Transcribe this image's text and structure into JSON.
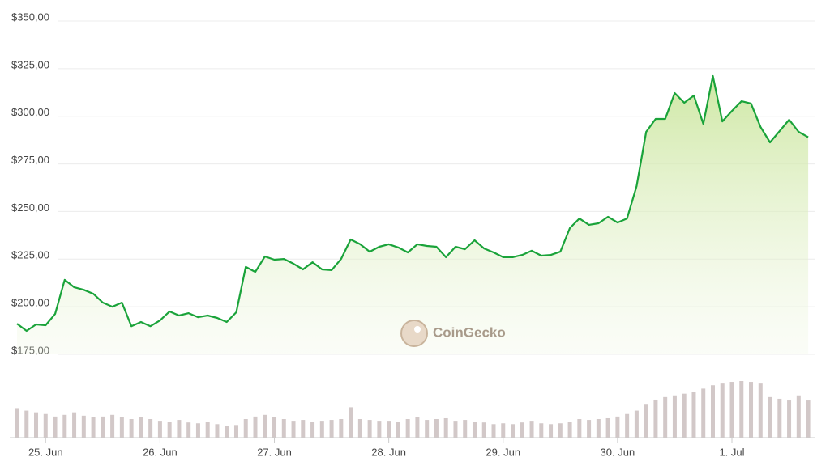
{
  "chart_data": {
    "type": "line",
    "watermark": "CoinGecko",
    "categories": [
      null,
      null,
      null,
      "25. Jun",
      null,
      null,
      null,
      null,
      null,
      null,
      null,
      null,
      null,
      null,
      null,
      "26. Jun",
      null,
      null,
      null,
      null,
      null,
      null,
      null,
      null,
      null,
      null,
      null,
      "27. Jun",
      null,
      null,
      null,
      null,
      null,
      null,
      null,
      null,
      null,
      null,
      null,
      "28. Jun",
      null,
      null,
      null,
      null,
      null,
      null,
      null,
      null,
      null,
      null,
      null,
      "29. Jun",
      null,
      null,
      null,
      null,
      null,
      null,
      null,
      null,
      null,
      null,
      null,
      "30. Jun",
      null,
      null,
      null,
      null,
      null,
      null,
      null,
      null,
      null,
      null,
      null,
      "1. Jul",
      null,
      null,
      null,
      null,
      null,
      null,
      null,
      null
    ],
    "values": [
      191.1,
      187.3,
      190.7,
      190.3,
      196.2,
      214.1,
      210.2,
      208.9,
      206.8,
      202.2,
      200.0,
      202.2,
      189.8,
      192.0,
      189.8,
      192.8,
      197.5,
      195.4,
      196.6,
      194.5,
      195.4,
      194.1,
      192.0,
      197.1,
      220.9,
      218.3,
      226.4,
      224.7,
      225.1,
      222.6,
      219.6,
      223.4,
      219.6,
      219.2,
      225.1,
      235.3,
      232.8,
      228.9,
      231.5,
      232.8,
      231.1,
      228.5,
      232.8,
      231.9,
      231.5,
      226.0,
      231.5,
      230.2,
      234.9,
      230.6,
      228.5,
      226.0,
      226.0,
      227.2,
      229.4,
      226.8,
      227.2,
      228.9,
      241.3,
      246.3,
      243.0,
      243.8,
      247.2,
      244.2,
      246.3,
      263.3,
      291.8,
      298.6,
      298.6,
      312.2,
      307.1,
      310.9,
      296.0,
      321.1,
      297.3,
      302.8,
      307.9,
      306.7,
      294.4,
      286.3,
      292.2,
      298.2,
      291.8,
      289.0
    ],
    "color": "#1aa33a",
    "volume": [
      35,
      32,
      30,
      28,
      25,
      27,
      30,
      26,
      24,
      25,
      27,
      24,
      22,
      24,
      22,
      20,
      19,
      21,
      18,
      17,
      19,
      16,
      14,
      15,
      22,
      25,
      27,
      24,
      22,
      20,
      21,
      19,
      20,
      21,
      22,
      36,
      22,
      21,
      20,
      20,
      19,
      22,
      24,
      21,
      22,
      23,
      20,
      21,
      19,
      18,
      16,
      17,
      16,
      18,
      20,
      17,
      16,
      17,
      19,
      22,
      21,
      22,
      23,
      25,
      28,
      32,
      40,
      45,
      48,
      50,
      52,
      54,
      58,
      62,
      64,
      66,
      67,
      66,
      64,
      48,
      46,
      44,
      50,
      44
    ],
    "volume_color": "#d2c8c8",
    "ylim": [
      175,
      350
    ],
    "yticks": [
      {
        "value": 175,
        "label": "$175,00"
      },
      {
        "value": 200,
        "label": "$200,00"
      },
      {
        "value": 225,
        "label": "$225,00"
      },
      {
        "value": 250,
        "label": "$250,00"
      },
      {
        "value": 275,
        "label": "$275,00"
      },
      {
        "value": 300,
        "label": "$300,00"
      },
      {
        "value": 325,
        "label": "$325,00"
      },
      {
        "value": 350,
        "label": "$350,00"
      }
    ],
    "grid": true
  }
}
